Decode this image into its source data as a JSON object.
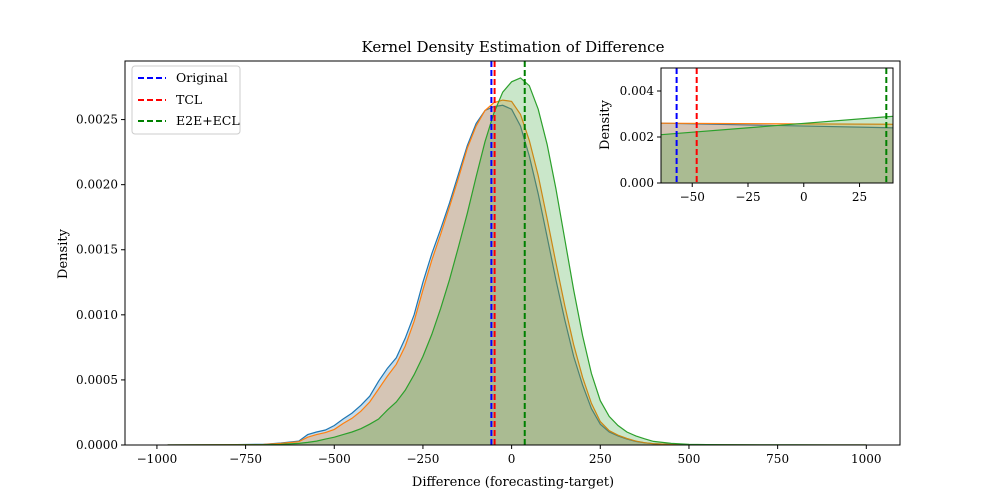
{
  "chart_data": [
    {
      "type": "area",
      "title": "Kernel Density Estimation of Difference",
      "xlabel": "Difference (forecasting-target)",
      "ylabel": "Density",
      "xlim": [
        -1090,
        1095
      ],
      "ylim": [
        0,
        0.00295
      ],
      "xticks": [
        -1000,
        -750,
        -500,
        -250,
        0,
        250,
        500,
        750,
        1000
      ],
      "xtick_labels": [
        "−1000",
        "−750",
        "−500",
        "−250",
        "0",
        "250",
        "500",
        "750",
        "1000"
      ],
      "yticks": [
        0,
        0.0005,
        0.001,
        0.0015,
        0.002,
        0.0025
      ],
      "ytick_labels": [
        "0.0000",
        "0.0005",
        "0.0010",
        "0.0015",
        "0.0020",
        "0.0025"
      ],
      "grid": false,
      "legend_position": "top-left",
      "series": [
        {
          "name": "Original",
          "color": "#1f77b4",
          "mean_line_color": "#0000ff",
          "mean": -57,
          "x": [
            -970,
            -800,
            -700,
            -650,
            -600,
            -575,
            -550,
            -525,
            -500,
            -475,
            -450,
            -425,
            -400,
            -375,
            -350,
            -325,
            -300,
            -275,
            -250,
            -225,
            -200,
            -175,
            -150,
            -125,
            -100,
            -75,
            -50,
            -25,
            0,
            25,
            50,
            75,
            100,
            125,
            150,
            175,
            200,
            225,
            250,
            275,
            300,
            325,
            350,
            375,
            400,
            450,
            500,
            550,
            600,
            700,
            800,
            900,
            1000
          ],
          "y": [
            0,
            2e-06,
            5e-06,
            1.5e-05,
            3e-05,
            8e-05,
            0.0001,
            0.000115,
            0.00015,
            0.0002,
            0.000245,
            0.000305,
            0.000375,
            0.00049,
            0.00059,
            0.00067,
            0.00082,
            0.001,
            0.00125,
            0.00147,
            0.00166,
            0.00186,
            0.00208,
            0.0023,
            0.00247,
            0.00257,
            0.0026,
            0.00261,
            0.00258,
            0.00245,
            0.00222,
            0.00193,
            0.0016,
            0.00127,
            0.00096,
            0.00068,
            0.00046,
            0.00028,
            0.00016,
            0.0001,
            7e-05,
            4.5e-05,
            2.8e-05,
            1.7e-05,
            1e-05,
            4e-06,
            2e-06,
            1e-06,
            1e-06,
            0,
            0,
            0,
            0
          ]
        },
        {
          "name": "TCL",
          "color": "#ff7f0e",
          "mean_line_color": "#ff0000",
          "mean": -48,
          "x": [
            -970,
            -800,
            -700,
            -650,
            -600,
            -575,
            -550,
            -525,
            -500,
            -475,
            -450,
            -425,
            -400,
            -375,
            -350,
            -325,
            -300,
            -275,
            -250,
            -225,
            -200,
            -175,
            -150,
            -125,
            -100,
            -75,
            -50,
            -25,
            0,
            25,
            50,
            75,
            100,
            125,
            150,
            175,
            200,
            225,
            250,
            275,
            300,
            325,
            350,
            375,
            400,
            450,
            500,
            550,
            600,
            700,
            800,
            900,
            1000
          ],
          "y": [
            0,
            2e-06,
            4e-06,
            1.2e-05,
            2.5e-05,
            6e-05,
            8e-05,
            9.5e-05,
            0.00012,
            0.000165,
            0.000205,
            0.00026,
            0.00033,
            0.00043,
            0.00053,
            0.00062,
            0.00076,
            0.00095,
            0.00119,
            0.00142,
            0.00162,
            0.00183,
            0.00205,
            0.00228,
            0.00245,
            0.00257,
            0.00263,
            0.00265,
            0.00264,
            0.00254,
            0.00234,
            0.00207,
            0.00174,
            0.0014,
            0.00107,
            0.00077,
            0.00052,
            0.00032,
            0.00018,
            0.00011,
            7.5e-05,
            5e-05,
            3e-05,
            1.8e-05,
            1e-05,
            4e-06,
            2e-06,
            1e-06,
            1e-06,
            0,
            0,
            0,
            0
          ]
        },
        {
          "name": "E2E+ECL",
          "color": "#2ca02c",
          "mean_line_color": "#008000",
          "mean": 37,
          "x": [
            -970,
            -800,
            -700,
            -650,
            -600,
            -575,
            -550,
            -525,
            -500,
            -475,
            -450,
            -425,
            -400,
            -375,
            -350,
            -325,
            -300,
            -275,
            -250,
            -225,
            -200,
            -175,
            -150,
            -125,
            -100,
            -75,
            -50,
            -25,
            0,
            25,
            50,
            75,
            100,
            125,
            150,
            175,
            200,
            225,
            250,
            275,
            300,
            325,
            350,
            375,
            400,
            450,
            500,
            550,
            600,
            700,
            800,
            900,
            1000
          ],
          "y": [
            0,
            1e-06,
            2e-06,
            5e-06,
            1.2e-05,
            2e-05,
            3e-05,
            4.5e-05,
            6e-05,
            8e-05,
            0.0001,
            0.000125,
            0.00016,
            0.0002,
            0.00027,
            0.00033,
            0.00042,
            0.00054,
            0.00068,
            0.00085,
            0.00105,
            0.00127,
            0.00152,
            0.00178,
            0.00206,
            0.00233,
            0.00255,
            0.00271,
            0.00279,
            0.00282,
            0.00276,
            0.00258,
            0.00231,
            0.00197,
            0.00158,
            0.00119,
            0.00084,
            0.00055,
            0.00034,
            0.00022,
            0.00015,
            0.0001,
            7e-05,
            4.8e-05,
            2.8e-05,
            1.2e-05,
            5e-06,
            3e-06,
            2e-06,
            1e-06,
            5e-07,
            0,
            0
          ]
        }
      ]
    },
    {
      "type": "area",
      "role": "inset",
      "title": "",
      "xlabel": "",
      "ylabel": "Density",
      "xlim": [
        -64,
        40
      ],
      "ylim": [
        0,
        0.005
      ],
      "xticks": [
        -50,
        -25,
        0,
        25
      ],
      "xtick_labels": [
        "−50",
        "−25",
        "0",
        "25"
      ],
      "yticks": [
        0,
        0.002,
        0.004
      ],
      "ytick_labels": [
        "0.000",
        "0.002",
        "0.004"
      ],
      "grid": false,
      "series": [
        {
          "name": "Original",
          "color": "#1f77b4",
          "mean_line_color": "#0000ff",
          "mean": -57,
          "x": [
            -64,
            40
          ],
          "y": [
            0.0026,
            0.0024
          ]
        },
        {
          "name": "TCL",
          "color": "#ff7f0e",
          "mean_line_color": "#ff0000",
          "mean": -48,
          "x": [
            -64,
            40
          ],
          "y": [
            0.0026,
            0.00255
          ]
        },
        {
          "name": "E2E+ECL",
          "color": "#2ca02c",
          "mean_line_color": "#008000",
          "mean": 37,
          "x": [
            -64,
            40
          ],
          "y": [
            0.0021,
            0.0029
          ]
        }
      ]
    }
  ]
}
